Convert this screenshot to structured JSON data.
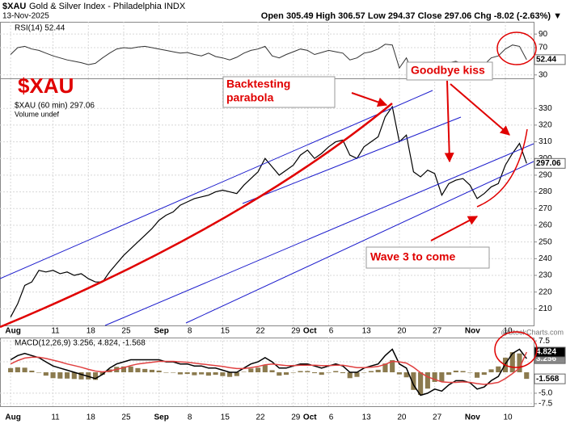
{
  "header": {
    "symbol": "$XAU",
    "title": "Gold & Silver Index - Philadelphia INDX",
    "date": "13-Nov-2025",
    "quote": "Open 305.49 High 306.57 Low 294.37 Close 297.06 Chg -8.02 (-2.63%) ▼",
    "watermark": "@StockCharts.com"
  },
  "chart_data": [
    {
      "type": "line",
      "legend": [
        "$XAU (60 min) 297.06",
        "Volume undef"
      ],
      "annotations": [
        "$XAU",
        "Backtesting",
        "parabola",
        "Goodbye kiss",
        "Wave 3 to come"
      ],
      "color": "#000000",
      "x": [
        0,
        1,
        2,
        3,
        4,
        5,
        6,
        7,
        8,
        9,
        10,
        11,
        12,
        13,
        14,
        15,
        16,
        17,
        18,
        19,
        20,
        21,
        22,
        23,
        24,
        25,
        26,
        27,
        28,
        29,
        30,
        31,
        32,
        33,
        34,
        35,
        36,
        37,
        38,
        39,
        40,
        41,
        42,
        43,
        44,
        45,
        46,
        47,
        48,
        49,
        50,
        51,
        52,
        53,
        54,
        55,
        56,
        57,
        58,
        59,
        60,
        61,
        62,
        63,
        64,
        65,
        66,
        67,
        68,
        69,
        70,
        71,
        72,
        73
      ],
      "values": [
        205,
        213,
        224,
        226,
        233,
        232,
        233,
        231,
        232,
        230,
        231,
        228,
        226,
        226,
        232,
        237,
        242,
        246,
        250,
        254,
        258,
        263,
        266,
        268,
        272,
        274,
        276,
        277,
        278,
        280,
        281,
        280,
        279,
        284,
        288,
        292,
        300,
        295,
        290,
        293,
        296,
        302,
        305,
        300,
        303,
        307,
        310,
        311,
        302,
        300,
        307,
        310,
        313,
        325,
        331,
        310,
        314,
        292,
        289,
        293,
        291,
        278,
        285,
        287,
        288,
        284,
        276,
        279,
        283,
        285,
        296,
        303,
        309,
        297.06
      ],
      "xlim": [
        -1.5,
        74
      ],
      "xticks": [
        {
          "value": 0,
          "label": "Aug"
        },
        {
          "value": 6,
          "label": "11"
        },
        {
          "value": 11,
          "label": "18"
        },
        {
          "value": 16,
          "label": "25"
        },
        {
          "value": 21,
          "label": "Sep"
        },
        {
          "value": 25,
          "label": "8"
        },
        {
          "value": 30,
          "label": "15"
        },
        {
          "value": 35,
          "label": "22"
        },
        {
          "value": 40,
          "label": "29"
        },
        {
          "value": 42,
          "label": "Oct"
        },
        {
          "value": 45,
          "label": "6"
        },
        {
          "value": 50,
          "label": "13"
        },
        {
          "value": 55,
          "label": "20"
        },
        {
          "value": 60,
          "label": "27"
        },
        {
          "value": 65,
          "label": "Nov"
        },
        {
          "value": 70,
          "label": "10"
        }
      ],
      "ylim": [
        200,
        348
      ],
      "yticks": [
        210,
        220,
        230,
        240,
        250,
        260,
        270,
        280,
        290,
        300,
        310,
        320,
        330
      ],
      "grid": true
    },
    {
      "type": "line",
      "legend": "RSI(14) 52.44",
      "color": "#333333",
      "x": [
        0,
        1,
        2,
        3,
        4,
        5,
        6,
        7,
        8,
        9,
        10,
        11,
        12,
        13,
        14,
        15,
        16,
        17,
        18,
        19,
        20,
        21,
        22,
        23,
        24,
        25,
        26,
        27,
        28,
        29,
        30,
        31,
        32,
        33,
        34,
        35,
        36,
        37,
        38,
        39,
        40,
        41,
        42,
        43,
        44,
        45,
        46,
        47,
        48,
        49,
        50,
        51,
        52,
        53,
        54,
        55,
        56,
        57,
        58,
        59,
        60,
        61,
        62,
        63,
        64,
        65,
        66,
        67,
        68,
        69,
        70,
        71,
        72,
        73
      ],
      "values": [
        60,
        70,
        72,
        68,
        66,
        62,
        58,
        55,
        52,
        50,
        48,
        45,
        47,
        55,
        62,
        68,
        70,
        69,
        71,
        72,
        70,
        68,
        66,
        64,
        62,
        63,
        60,
        58,
        62,
        57,
        55,
        52,
        56,
        62,
        66,
        68,
        72,
        58,
        55,
        60,
        64,
        68,
        66,
        60,
        63,
        66,
        64,
        62,
        52,
        55,
        62,
        64,
        68,
        75,
        74,
        40,
        55,
        30,
        35,
        45,
        42,
        28,
        48,
        50,
        46,
        42,
        35,
        45,
        55,
        58,
        68,
        74,
        72,
        52.44
      ],
      "xlim": [
        -1.5,
        74
      ],
      "ylim": [
        25,
        108
      ],
      "yticks": [
        30,
        70,
        90
      ],
      "grid": true
    },
    {
      "type": "macd",
      "legend": "MACD(12,26,9) 3.256, 4.824, -1.568",
      "x": [
        0,
        1,
        2,
        3,
        4,
        5,
        6,
        7,
        8,
        9,
        10,
        11,
        12,
        13,
        14,
        15,
        16,
        17,
        18,
        19,
        20,
        21,
        22,
        23,
        24,
        25,
        26,
        27,
        28,
        29,
        30,
        31,
        32,
        33,
        34,
        35,
        36,
        37,
        38,
        39,
        40,
        41,
        42,
        43,
        44,
        45,
        46,
        47,
        48,
        49,
        50,
        51,
        52,
        53,
        54,
        55,
        56,
        57,
        58,
        59,
        60,
        61,
        62,
        63,
        64,
        65,
        66,
        67,
        68,
        69,
        70,
        71,
        72,
        73
      ],
      "series": [
        {
          "type": "bar",
          "color": "#8b7a4e",
          "values": [
            1,
            1.2,
            1.1,
            0.4,
            -0.1,
            -0.8,
            -1.4,
            -1.5,
            -1.5,
            -1.6,
            -1.7,
            -1.7,
            -1.8,
            -0.6,
            0.7,
            1.3,
            1.4,
            1.4,
            1,
            0.8,
            0.6,
            0.4,
            -0.1,
            -0.1,
            -0.5,
            -0.4,
            -0.7,
            -0.5,
            -0.8,
            -0.6,
            -0.9,
            -1.1,
            -0.9,
            0.1,
            0.9,
            1.1,
            1.7,
            0.5,
            -0.8,
            -0.6,
            -0.1,
            0.3,
            0.3,
            -0.2,
            -0.6,
            -0.1,
            0.3,
            -0.2,
            -1.4,
            -1.1,
            -0.1,
            0.3,
            0.6,
            2.1,
            2.9,
            -0.5,
            -1.2,
            -4.2,
            -5.4,
            -3.9,
            -2.3,
            -2.2,
            -0.6,
            0.4,
            0.3,
            -0.1,
            -1.3,
            -0.6,
            0.7,
            1.4,
            3.5,
            4.8,
            4.5,
            -1.568
          ]
        },
        {
          "type": "line",
          "color": "#000000",
          "values": [
            3,
            4,
            4.5,
            4,
            3.5,
            2.5,
            1.5,
            1,
            0.5,
            0,
            -0.5,
            -1,
            -1.5,
            -0.5,
            1,
            2,
            2.5,
            3,
            3,
            3,
            3,
            3,
            2.5,
            2.5,
            2,
            2,
            1.5,
            1.5,
            1,
            1,
            0.5,
            0,
            0,
            1,
            2,
            2.5,
            3.5,
            2.5,
            1,
            1,
            1.5,
            2,
            2,
            1.5,
            1,
            1.5,
            2,
            1.5,
            0,
            0,
            1,
            1.5,
            2,
            4,
            5.5,
            2,
            1,
            -3,
            -5.5,
            -5,
            -4,
            -4.5,
            -3,
            -2,
            -2,
            -2.5,
            -4,
            -3.5,
            -2,
            -1,
            2,
            4.5,
            5.5,
            3.256
          ]
        },
        {
          "type": "line",
          "color": "#e04040",
          "values": [
            2,
            2.8,
            3.4,
            3.6,
            3.6,
            3.3,
            2.9,
            2.5,
            2,
            1.6,
            1.2,
            0.7,
            0.3,
            0.1,
            0.3,
            0.7,
            1.1,
            1.6,
            2,
            2.2,
            2.4,
            2.6,
            2.6,
            2.6,
            2.5,
            2.4,
            2.2,
            2,
            1.8,
            1.6,
            1.4,
            1.1,
            0.9,
            0.9,
            1.1,
            1.4,
            1.8,
            2,
            1.8,
            1.6,
            1.6,
            1.7,
            1.7,
            1.7,
            1.6,
            1.6,
            1.7,
            1.7,
            1.4,
            1.1,
            1.1,
            1.2,
            1.4,
            1.9,
            2.6,
            2.5,
            2.2,
            1.2,
            -0.1,
            -1.1,
            -1.7,
            -2.3,
            -2.4,
            -2.4,
            -2.3,
            -2.4,
            -2.7,
            -2.9,
            -2.7,
            -2.4,
            -1.5,
            -0.3,
            1,
            4.824
          ]
        }
      ],
      "xlim": [
        -1.5,
        74
      ],
      "xticks": [
        {
          "value": 0,
          "label": "Aug"
        },
        {
          "value": 6,
          "label": "11"
        },
        {
          "value": 11,
          "label": "18"
        },
        {
          "value": 16,
          "label": "25"
        },
        {
          "value": 21,
          "label": "Sep"
        },
        {
          "value": 25,
          "label": "8"
        },
        {
          "value": 30,
          "label": "15"
        },
        {
          "value": 35,
          "label": "22"
        },
        {
          "value": 40,
          "label": "29"
        },
        {
          "value": 42,
          "label": "Oct"
        },
        {
          "value": 45,
          "label": "6"
        },
        {
          "value": 50,
          "label": "13"
        },
        {
          "value": 55,
          "label": "20"
        },
        {
          "value": 60,
          "label": "27"
        },
        {
          "value": 65,
          "label": "Nov"
        },
        {
          "value": 70,
          "label": "10"
        }
      ],
      "ylim": [
        -8.1,
        8.3
      ],
      "yticks": [
        7.5,
        2.5,
        {
          "value": -5,
          "label": "-5.0"
        },
        -7.5
      ],
      "grid": true
    }
  ]
}
